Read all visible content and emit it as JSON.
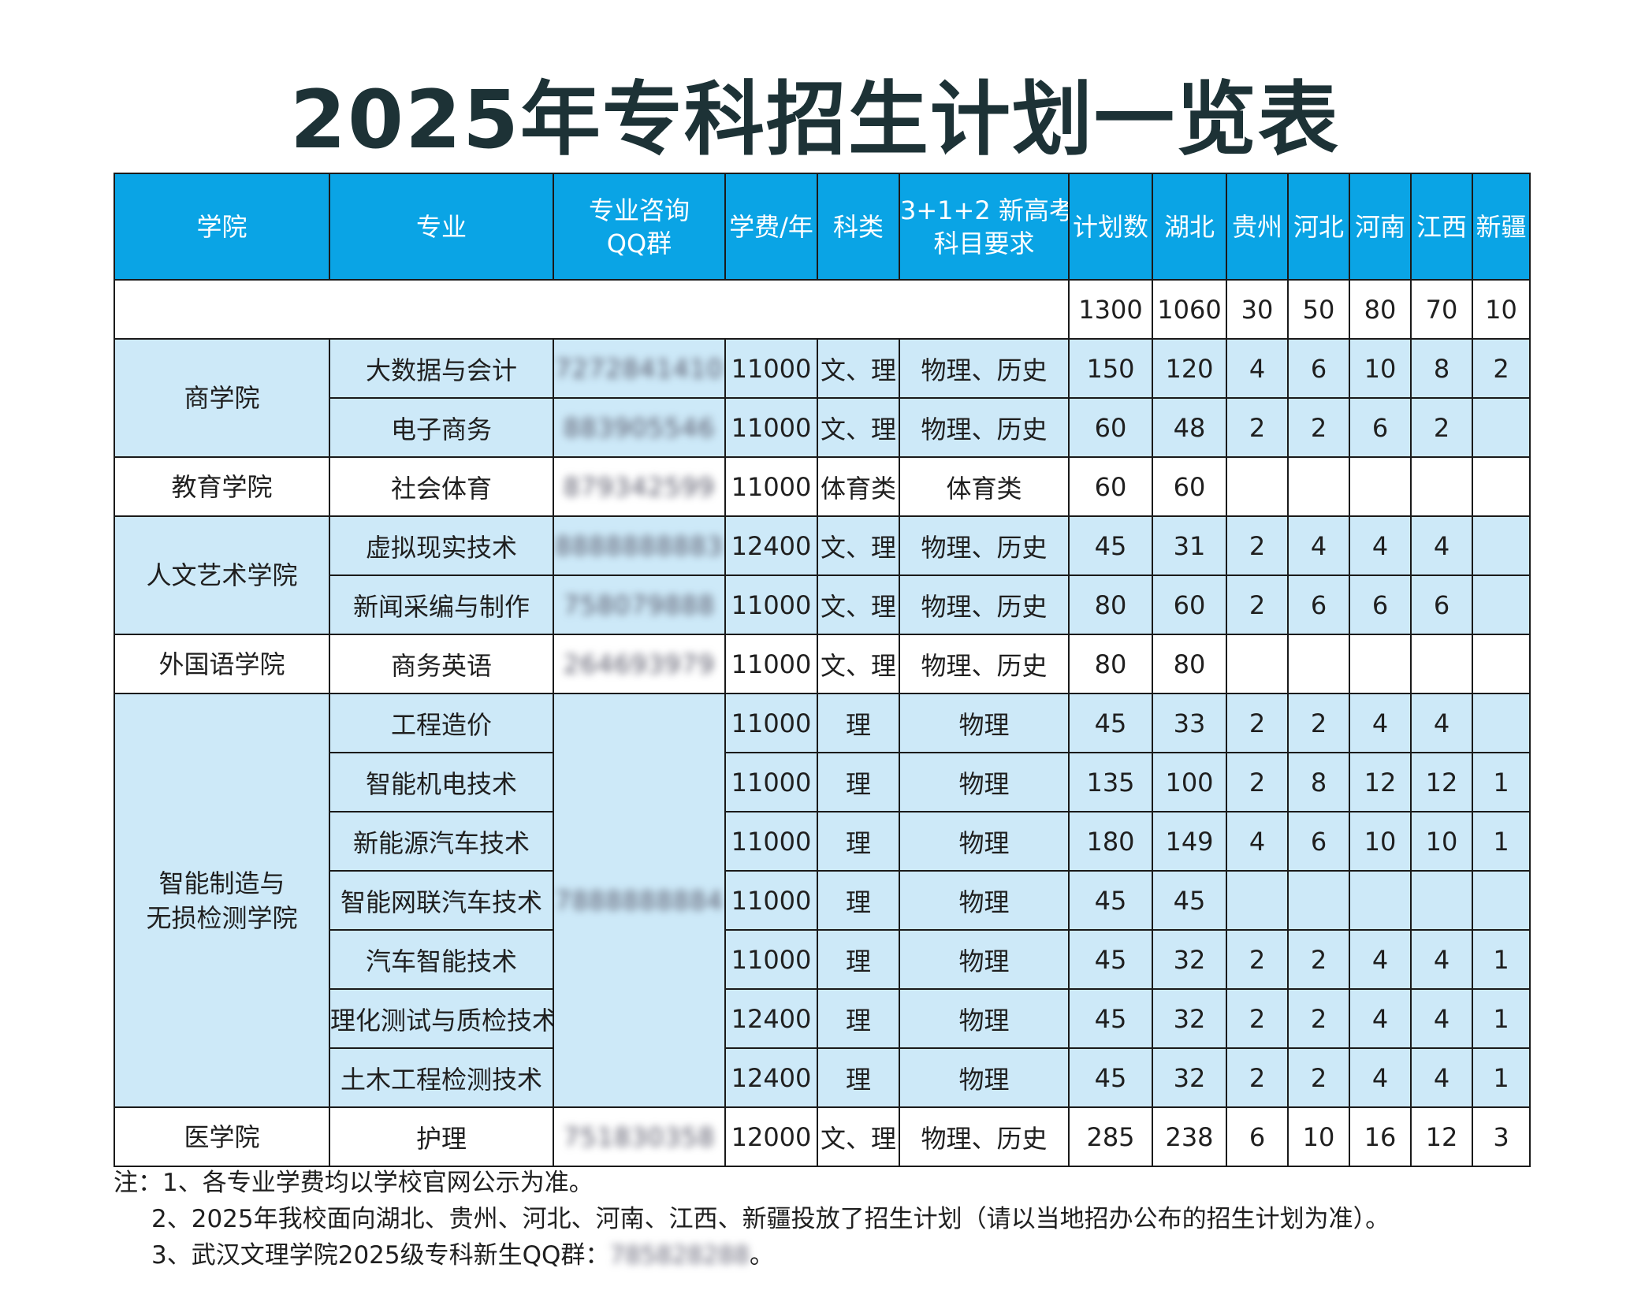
{
  "title": "2025年专科招生计划一览表",
  "table": {
    "headers": {
      "college": "学院",
      "major": "专业",
      "qq_line1": "专业咨询",
      "qq_line2": "QQ群",
      "fee": "学费/年",
      "category": "科类",
      "subject_line1": "3+1+2 新高考",
      "subject_line2": "科目要求",
      "plan": "计划数",
      "hubei": "湖北",
      "guizhou": "贵州",
      "hebei": "河北",
      "henan": "河南",
      "jiangxi": "江西",
      "xinjiang": "新疆"
    },
    "totals": {
      "plan": "1300",
      "hubei": "1060",
      "guizhou": "30",
      "hebei": "50",
      "henan": "80",
      "jiangxi": "70",
      "xinjiang": "10"
    },
    "colleges": {
      "business": "商学院",
      "education": "教育学院",
      "humanities": "人文艺术学院",
      "foreign": "外国语学院",
      "manufacturing_line1": "智能制造与",
      "manufacturing_line2": "无损检测学院",
      "medical": "医学院"
    },
    "rows": [
      {
        "major": "大数据与会计",
        "qq": "7272841410",
        "fee": "11000",
        "category": "文、理",
        "subjects": "物理、历史",
        "plan": "150",
        "hubei": "120",
        "guizhou": "4",
        "hebei": "6",
        "henan": "10",
        "jiangxi": "8",
        "xinjiang": "2"
      },
      {
        "major": "电子商务",
        "qq": "883905546",
        "fee": "11000",
        "category": "文、理",
        "subjects": "物理、历史",
        "plan": "60",
        "hubei": "48",
        "guizhou": "2",
        "hebei": "2",
        "henan": "6",
        "jiangxi": "2",
        "xinjiang": ""
      },
      {
        "major": "社会体育",
        "qq": "879342599",
        "fee": "11000",
        "category": "体育类",
        "subjects": "体育类",
        "plan": "60",
        "hubei": "60",
        "guizhou": "",
        "hebei": "",
        "henan": "",
        "jiangxi": "",
        "xinjiang": ""
      },
      {
        "major": "虚拟现实技术",
        "qq": "8888888883",
        "fee": "12400",
        "category": "文、理",
        "subjects": "物理、历史",
        "plan": "45",
        "hubei": "31",
        "guizhou": "2",
        "hebei": "4",
        "henan": "4",
        "jiangxi": "4",
        "xinjiang": ""
      },
      {
        "major": "新闻采编与制作",
        "qq": "758079888",
        "fee": "11000",
        "category": "文、理",
        "subjects": "物理、历史",
        "plan": "80",
        "hubei": "60",
        "guizhou": "2",
        "hebei": "6",
        "henan": "6",
        "jiangxi": "6",
        "xinjiang": ""
      },
      {
        "major": "商务英语",
        "qq": "264693979",
        "fee": "11000",
        "category": "文、理",
        "subjects": "物理、历史",
        "plan": "80",
        "hubei": "80",
        "guizhou": "",
        "hebei": "",
        "henan": "",
        "jiangxi": "",
        "xinjiang": ""
      },
      {
        "major": "工程造价",
        "qq": "",
        "fee": "11000",
        "category": "理",
        "subjects": "物理",
        "plan": "45",
        "hubei": "33",
        "guizhou": "2",
        "hebei": "2",
        "henan": "4",
        "jiangxi": "4",
        "xinjiang": ""
      },
      {
        "major": "智能机电技术",
        "qq": "",
        "fee": "11000",
        "category": "理",
        "subjects": "物理",
        "plan": "135",
        "hubei": "100",
        "guizhou": "2",
        "hebei": "8",
        "henan": "12",
        "jiangxi": "12",
        "xinjiang": "1"
      },
      {
        "major": "新能源汽车技术",
        "qq": "",
        "fee": "11000",
        "category": "理",
        "subjects": "物理",
        "plan": "180",
        "hubei": "149",
        "guizhou": "4",
        "hebei": "6",
        "henan": "10",
        "jiangxi": "10",
        "xinjiang": "1"
      },
      {
        "major": "智能网联汽车技术",
        "qq": "",
        "fee": "11000",
        "category": "理",
        "subjects": "物理",
        "plan": "45",
        "hubei": "45",
        "guizhou": "",
        "hebei": "",
        "henan": "",
        "jiangxi": "",
        "xinjiang": ""
      },
      {
        "major": "汽车智能技术",
        "qq": "",
        "fee": "11000",
        "category": "理",
        "subjects": "物理",
        "plan": "45",
        "hubei": "32",
        "guizhou": "2",
        "hebei": "2",
        "henan": "4",
        "jiangxi": "4",
        "xinjiang": "1"
      },
      {
        "major": "理化测试与质检技术",
        "qq": "",
        "fee": "12400",
        "category": "理",
        "subjects": "物理",
        "plan": "45",
        "hubei": "32",
        "guizhou": "2",
        "hebei": "2",
        "henan": "4",
        "jiangxi": "4",
        "xinjiang": "1"
      },
      {
        "major": "土木工程检测技术",
        "qq": "",
        "fee": "12400",
        "category": "理",
        "subjects": "物理",
        "plan": "45",
        "hubei": "32",
        "guizhou": "2",
        "hebei": "2",
        "henan": "4",
        "jiangxi": "4",
        "xinjiang": "1"
      },
      {
        "major": "护理",
        "qq": "751830358",
        "fee": "12000",
        "category": "文、理",
        "subjects": "物理、历史",
        "plan": "285",
        "hubei": "238",
        "guizhou": "6",
        "hebei": "10",
        "henan": "16",
        "jiangxi": "12",
        "xinjiang": "3"
      }
    ],
    "manufacturing_qq": "7888888884"
  },
  "notes": {
    "note1": "注：1、各专业学费均以学校官网公示为准。",
    "note2": "2、2025年我校面向湖北、贵州、河北、河南、江西、新疆投放了招生计划（请以当地招办公布的招生计划为准）。",
    "note3_prefix": "3、武汉文理学院2025级专科新生QQ群：",
    "note3_qq": "785828288",
    "note3_suffix": "。"
  }
}
